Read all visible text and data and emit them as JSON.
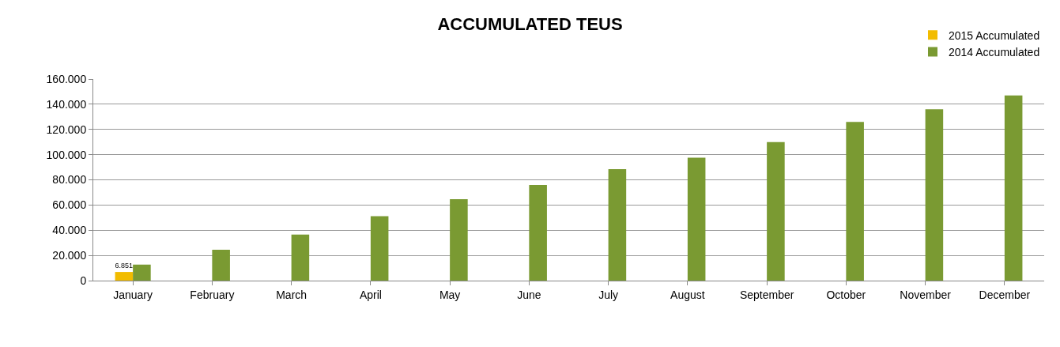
{
  "chart_data": {
    "type": "bar",
    "title": "ACCUMULATED TEUS",
    "categories": [
      "January",
      "February",
      "March",
      "April",
      "May",
      "June",
      "July",
      "August",
      "September",
      "October",
      "November",
      "December"
    ],
    "series": [
      {
        "name": "2015 Accumulated",
        "color": "#f2bc00",
        "values": [
          6851,
          null,
          null,
          null,
          null,
          null,
          null,
          null,
          null,
          null,
          null,
          null
        ],
        "value_labels": [
          "6.851",
          null,
          null,
          null,
          null,
          null,
          null,
          null,
          null,
          null,
          null,
          null
        ]
      },
      {
        "name": "2014 Accumulated",
        "color": "#7a9a32",
        "values": [
          12700,
          24500,
          36600,
          51200,
          64600,
          76000,
          88400,
          97500,
          110000,
          126000,
          136000,
          147000
        ]
      }
    ],
    "ylim": [
      0,
      160000
    ],
    "yticks": [
      {
        "value": 0,
        "label": "0"
      },
      {
        "value": 20000,
        "label": "20.000"
      },
      {
        "value": 40000,
        "label": "40.000"
      },
      {
        "value": 60000,
        "label": "60.000"
      },
      {
        "value": 80000,
        "label": "80.000"
      },
      {
        "value": 100000,
        "label": "100.000"
      },
      {
        "value": 120000,
        "label": "120.000"
      },
      {
        "value": 140000,
        "label": "140.000"
      },
      {
        "value": 160000,
        "label": "160.000"
      }
    ],
    "grid": "y",
    "legend": "top right"
  }
}
